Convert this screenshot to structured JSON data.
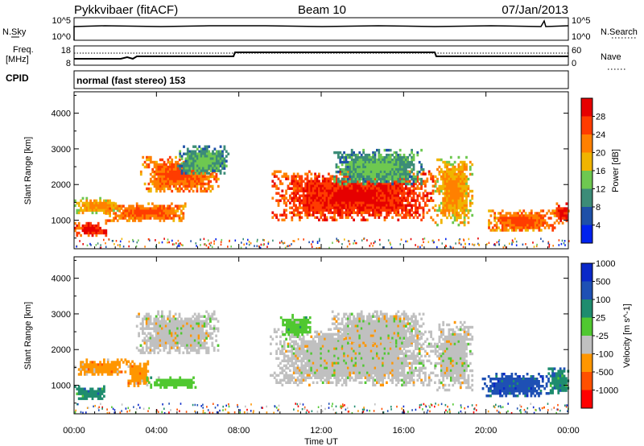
{
  "header": {
    "title": "Pykkvibaer (fitACF)",
    "beam": "Beam 10",
    "date": "07/Jan/2013"
  },
  "nsky_panel": {
    "left_label": "N.Sky",
    "right_label": "N.Search",
    "left_ticks": [
      "10^5",
      "10^0"
    ],
    "right_ticks": [
      "10^5",
      "10^0"
    ]
  },
  "freq_panel": {
    "left_label_1": "Freq.",
    "left_label_2": "[MHz]",
    "right_label": "Nave",
    "left_ticks": [
      "18",
      "8"
    ],
    "right_ticks": [
      "60",
      "0"
    ]
  },
  "cpid_panel": {
    "label": "CPID",
    "text": "normal (fast stereo) 153"
  },
  "colors": {
    "power": [
      "#0022ee",
      "#1e50a8",
      "#3c8c78",
      "#6ec850",
      "#f0b400",
      "#ff8000",
      "#ff3c00",
      "#e60000"
    ],
    "velocity": [
      "#ff0000",
      "#ff5000",
      "#ff9600",
      "#c0c0c0",
      "#50c830",
      "#1e8c6e",
      "#1e50b4",
      "#0a28c8"
    ]
  },
  "chart_data": [
    {
      "type": "heatmap",
      "panel": "power",
      "ylabel": "Slant Range [km]",
      "ylim": [
        200,
        4600
      ],
      "xlim": [
        0,
        24
      ],
      "y_ticks": [
        "1000",
        "2000",
        "3000",
        "4000"
      ],
      "colorbar_label": "Power [dB]",
      "colorbar_ticks": [
        "4",
        "8",
        "12",
        "16",
        "20",
        "24",
        "28"
      ],
      "blobs": [
        {
          "t0": 0.0,
          "t1": 1.6,
          "r0": 600,
          "r1": 950,
          "level": 7
        },
        {
          "t0": 0.0,
          "t1": 2.2,
          "r0": 1200,
          "r1": 1650,
          "level": 5
        },
        {
          "t0": 1.5,
          "t1": 5.5,
          "r0": 1000,
          "r1": 1500,
          "level": 6
        },
        {
          "t0": 3.2,
          "t1": 7.0,
          "r0": 1800,
          "r1": 2800,
          "level": 6
        },
        {
          "t0": 5.0,
          "t1": 7.5,
          "r0": 2300,
          "r1": 3100,
          "level": 3
        },
        {
          "t0": 9.5,
          "t1": 17.5,
          "r0": 1000,
          "r1": 2400,
          "level": 7
        },
        {
          "t0": 12.5,
          "t1": 17.0,
          "r0": 2000,
          "r1": 3000,
          "level": 3
        },
        {
          "t0": 17.5,
          "t1": 19.3,
          "r0": 900,
          "r1": 2800,
          "level": 5
        },
        {
          "t0": 20.0,
          "t1": 23.3,
          "r0": 700,
          "r1": 1300,
          "level": 6
        },
        {
          "t0": 23.3,
          "t1": 24.0,
          "r0": 900,
          "r1": 1500,
          "level": 7
        }
      ]
    },
    {
      "type": "heatmap",
      "panel": "velocity",
      "xlabel": "Time UT",
      "ylabel": "Slant Range [km]",
      "ylim": [
        200,
        4600
      ],
      "xlim": [
        0,
        24
      ],
      "x_ticks": [
        "00:00",
        "04:00",
        "08:00",
        "12:00",
        "16:00",
        "20:00",
        "00:00"
      ],
      "y_ticks": [
        "1000",
        "2000",
        "3000",
        "4000"
      ],
      "colorbar_label": "Velocity [m s^-1]",
      "colorbar_ticks": [
        "-1000",
        "-500",
        "-100",
        "-25",
        "25",
        "100",
        "500",
        "1000"
      ],
      "blobs": [
        {
          "t0": 0.0,
          "t1": 1.6,
          "r0": 600,
          "r1": 1000,
          "level": 5
        },
        {
          "t0": 0.0,
          "t1": 2.5,
          "r0": 1300,
          "r1": 1750,
          "level": 2
        },
        {
          "t0": 2.5,
          "t1": 3.6,
          "r0": 1000,
          "r1": 1700,
          "level": 2
        },
        {
          "t0": 3.5,
          "t1": 6.0,
          "r0": 950,
          "r1": 1250,
          "level": 4
        },
        {
          "t0": 3.0,
          "t1": 7.0,
          "r0": 1900,
          "r1": 3100,
          "level": 3
        },
        {
          "t0": 9.5,
          "t1": 17.5,
          "r0": 1000,
          "r1": 2600,
          "level": 3
        },
        {
          "t0": 12.5,
          "t1": 17.0,
          "r0": 2100,
          "r1": 3100,
          "level": 3
        },
        {
          "t0": 10.0,
          "t1": 11.5,
          "r0": 2400,
          "r1": 3000,
          "level": 4
        },
        {
          "t0": 17.5,
          "t1": 19.3,
          "r0": 900,
          "r1": 2800,
          "level": 3
        },
        {
          "t0": 19.8,
          "t1": 23.0,
          "r0": 700,
          "r1": 1350,
          "level": 6
        },
        {
          "t0": 23.0,
          "t1": 24.0,
          "r0": 800,
          "r1": 1500,
          "level": 5
        }
      ]
    }
  ]
}
